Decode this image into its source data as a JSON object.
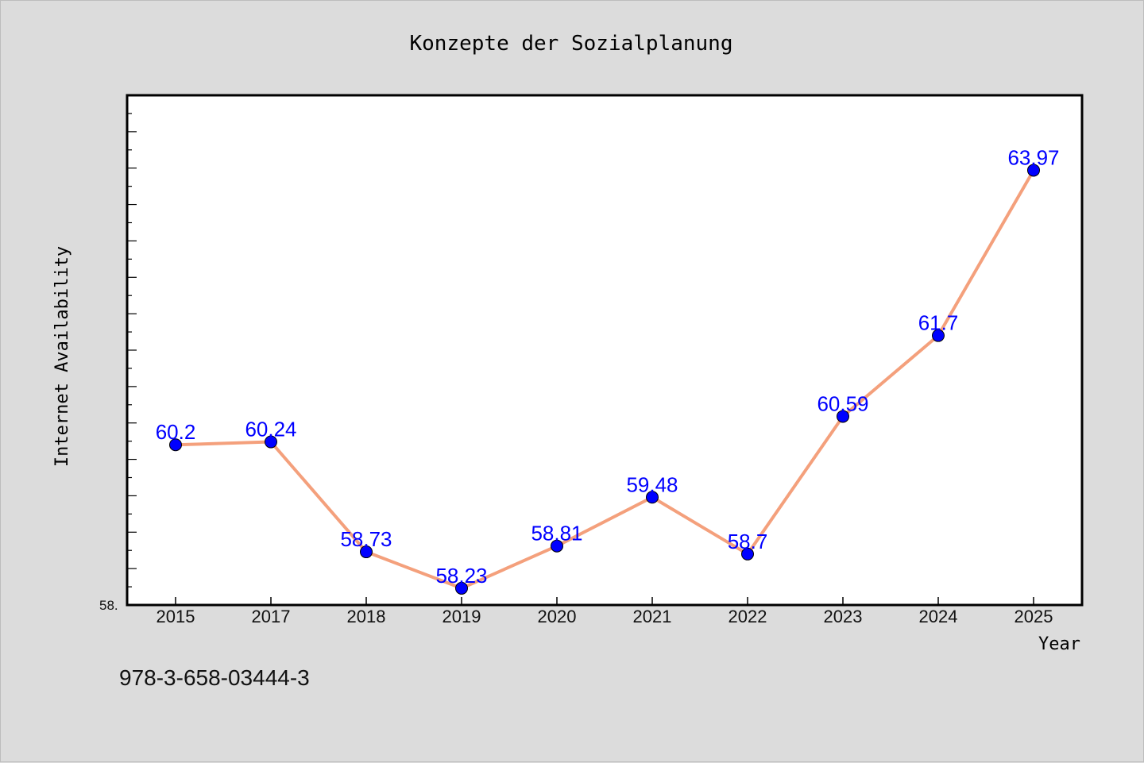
{
  "chart_data": {
    "type": "line",
    "title": "Konzepte der Sozialplanung",
    "xlabel": "Year",
    "ylabel": "Internet Availability",
    "categories": [
      "2015",
      "2017",
      "2018",
      "2019",
      "2020",
      "2021",
      "2022",
      "2023",
      "2024",
      "2025"
    ],
    "values": [
      60.2,
      60.24,
      58.73,
      58.23,
      58.81,
      59.48,
      58.7,
      60.59,
      61.7,
      63.97
    ],
    "data_labels": [
      "60.2",
      "60.24",
      "58.73",
      "58.23",
      "58.81",
      "59.48",
      "58.7",
      "60.59",
      "61.7",
      "63.97"
    ],
    "ylim": [
      58.0,
      65.0
    ],
    "ytick_labels": [
      "58."
    ],
    "grid": false,
    "colors": {
      "line": "#f4a07c",
      "marker": "#0000ff",
      "labels": "#0000ff",
      "figure_background": "#dcdcdc",
      "plot_background": "#ffffff"
    }
  },
  "footer": {
    "isbn": "978-3-658-03444-3"
  }
}
